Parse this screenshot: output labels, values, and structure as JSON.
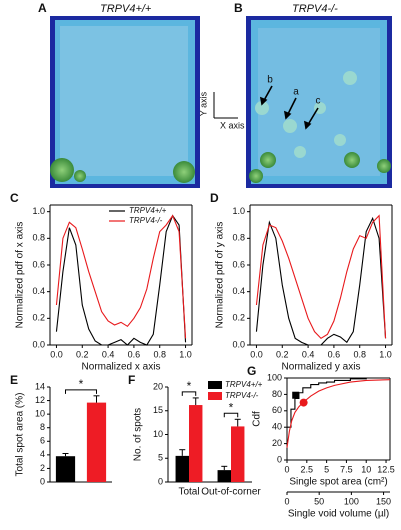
{
  "figure_panels": [
    {
      "label": "A",
      "title": "TRPV4+/+"
    },
    {
      "label": "B",
      "title": "TRPV4-/-",
      "annotations": [
        "b",
        "a",
        "c"
      ]
    }
  ],
  "axis_key": {
    "y": "Y axis",
    "x": "X axis"
  },
  "chart_data": [
    {
      "type": "line",
      "label": "C",
      "ylabel": "Normalized pdf of x axis",
      "xlabel": "Normalized x axis",
      "xlim": [
        -0.05,
        1.05
      ],
      "xticks": [
        {
          "value": 0,
          "label": "0.0"
        },
        0.2,
        0.4,
        0.6,
        0.8,
        {
          "value": 1,
          "label": "1.0"
        }
      ],
      "ylim": [
        0,
        1.05
      ],
      "yticks": [
        {
          "value": 0,
          "label": "0.0"
        },
        0.2,
        0.4,
        0.6,
        0.8,
        {
          "value": 1,
          "label": "1.0"
        }
      ],
      "legend": "upper center",
      "x": [
        0,
        0.05,
        0.1,
        0.15,
        0.2,
        0.25,
        0.3,
        0.35,
        0.4,
        0.45,
        0.5,
        0.55,
        0.6,
        0.65,
        0.7,
        0.75,
        0.8,
        0.85,
        0.9,
        0.95,
        1
      ],
      "series": [
        {
          "name": "TRPV4+/+",
          "color": "#000000",
          "values": [
            0.1,
            0.55,
            0.88,
            0.75,
            0.3,
            0.12,
            0.03,
            0,
            0,
            0.02,
            0.04,
            0,
            0.05,
            0.02,
            0,
            0.08,
            0.45,
            0.85,
            0.97,
            0.9,
            0.02
          ]
        },
        {
          "name": "TRPV4-/-",
          "color": "#e8191c",
          "values": [
            0.3,
            0.8,
            0.92,
            0.88,
            0.72,
            0.55,
            0.4,
            0.25,
            0.18,
            0.15,
            0.17,
            0.14,
            0.2,
            0.28,
            0.42,
            0.65,
            0.85,
            0.9,
            0.97,
            0.85,
            0.05
          ]
        }
      ]
    },
    {
      "type": "line",
      "label": "D",
      "ylabel": "Normalized pdf of y axis",
      "xlabel": "Normalized y axis",
      "xlim": [
        -0.05,
        1.05
      ],
      "xticks": [
        {
          "value": 0,
          "label": "0.0"
        },
        0.2,
        0.4,
        0.6,
        0.8,
        {
          "value": 1,
          "label": "1.0"
        }
      ],
      "ylim": [
        0,
        1.05
      ],
      "yticks": [
        {
          "value": 0,
          "label": "0.0"
        },
        0.2,
        0.4,
        0.6,
        0.8,
        {
          "value": 1,
          "label": "1.0"
        }
      ],
      "x": [
        0,
        0.05,
        0.1,
        0.15,
        0.2,
        0.25,
        0.3,
        0.35,
        0.4,
        0.45,
        0.5,
        0.55,
        0.6,
        0.65,
        0.7,
        0.75,
        0.8,
        0.85,
        0.9,
        0.95,
        1
      ],
      "series": [
        {
          "color": "#000000",
          "values": [
            0.1,
            0.6,
            0.92,
            0.8,
            0.45,
            0.2,
            0.05,
            0.02,
            0,
            0,
            0,
            0.05,
            0.08,
            0.06,
            0.02,
            0.1,
            0.45,
            0.85,
            0.95,
            0.8,
            0.05
          ]
        },
        {
          "color": "#e8191c",
          "values": [
            0.3,
            0.75,
            0.9,
            0.88,
            0.78,
            0.65,
            0.5,
            0.35,
            0.2,
            0.1,
            0.05,
            0.08,
            0.18,
            0.35,
            0.55,
            0.72,
            0.82,
            0.8,
            0.92,
            0.97,
            0.05
          ]
        }
      ]
    },
    {
      "type": "bar",
      "label": "E",
      "ylabel": "Total spot area (%)",
      "ylim": [
        0,
        14
      ],
      "yticks": [
        0,
        2,
        4,
        6,
        8,
        10,
        12,
        14
      ],
      "categories": [
        null,
        null
      ],
      "values": [
        3.8,
        11.7
      ],
      "errors": [
        0.4,
        1.0
      ],
      "colors": [
        "#000000",
        "#ee1c25"
      ],
      "annotations": [
        "*"
      ]
    },
    {
      "type": "bar",
      "label": "F",
      "ylabel": "No. of spots",
      "ylim": [
        0,
        20
      ],
      "yticks": [
        0,
        5,
        10,
        15,
        20
      ],
      "legend": "upper right",
      "categories": [
        "Total",
        "Out-of-corner"
      ],
      "series": [
        {
          "name": "TRPV4+/+",
          "color": "#000000",
          "values": [
            5.5,
            2.5
          ],
          "errors": [
            1.3,
            0.8
          ]
        },
        {
          "name": "TRPV4-/-",
          "color": "#ee1c25",
          "values": [
            16.2,
            11.7
          ],
          "errors": [
            1.5,
            1.5
          ]
        }
      ],
      "annotations": [
        "*",
        "*"
      ]
    },
    {
      "type": "line",
      "label": "G",
      "ylabel": "Cdf",
      "xlabel": "Single spot area (cm²)",
      "x2label": "Single void volume (µl)",
      "xlim": [
        0,
        13
      ],
      "xticks": [
        0,
        2.5,
        5,
        7.5,
        10,
        12.5
      ],
      "x2lim": [
        0,
        160
      ],
      "x2ticks": [
        0,
        50,
        100,
        150
      ],
      "ylim": [
        0,
        100
      ],
      "yticks": [
        0,
        20,
        40,
        60,
        80,
        100
      ],
      "series": [
        {
          "color": "#000000",
          "step": true,
          "x": [
            0,
            0.5,
            1,
            1.5,
            2,
            3,
            4,
            5,
            6,
            8,
            10,
            13
          ],
          "values": [
            40,
            62,
            75,
            82,
            88,
            92,
            94,
            95,
            97,
            99,
            100,
            100
          ]
        },
        {
          "color": "#e8191c",
          "x": [
            0,
            0.3,
            0.6,
            1,
            1.5,
            2,
            3,
            4,
            5,
            6,
            8,
            10,
            13
          ],
          "values": [
            15,
            35,
            48,
            58,
            65,
            70,
            78,
            84,
            88,
            91,
            95,
            97,
            98
          ]
        },
        {
          "color": "#000000",
          "marker": "square",
          "x": [
            1.1
          ],
          "values": [
            79
          ]
        },
        {
          "color": "#e8191c",
          "marker": "circle",
          "x": [
            2.1
          ],
          "values": [
            70
          ]
        }
      ]
    }
  ]
}
